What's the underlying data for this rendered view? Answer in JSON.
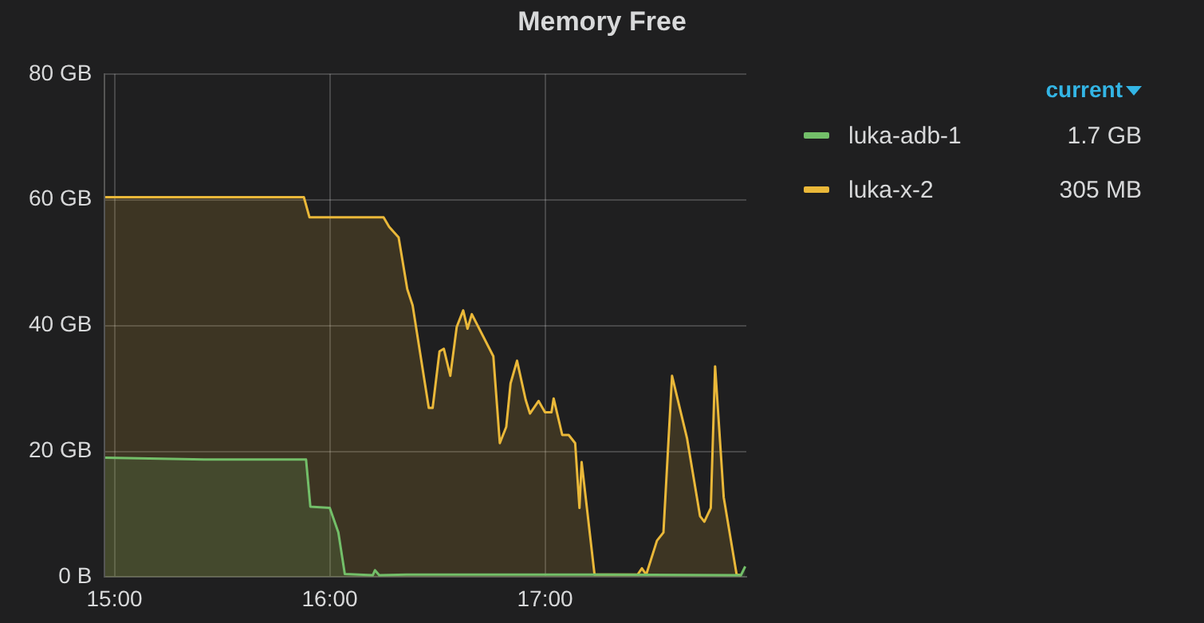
{
  "chart_data": {
    "type": "area",
    "title": "Memory Free",
    "legend_title": "current",
    "legend": "right",
    "grid": true,
    "xlim": [
      14.955,
      17.935
    ],
    "xticks": [
      {
        "value": 15,
        "label": "15:00"
      },
      {
        "value": 16,
        "label": "16:00"
      },
      {
        "value": 17,
        "label": "17:00"
      }
    ],
    "ylim": [
      0,
      80
    ],
    "yticks": [
      {
        "value": 0,
        "label": "0 B"
      },
      {
        "value": 20,
        "label": "20 GB"
      },
      {
        "value": 40,
        "label": "40 GB"
      },
      {
        "value": 60,
        "label": "60 GB"
      },
      {
        "value": 80,
        "label": "80 GB"
      }
    ],
    "annotations": [
      "1.7 GB",
      "305 MB"
    ],
    "series": [
      {
        "name": "luka-adb-1",
        "color": "#73bf69",
        "x": [
          14.957,
          15.43,
          15.89,
          15.91,
          16.0,
          16.04,
          16.07,
          16.2,
          16.21,
          16.23,
          16.37,
          17.23,
          17.91,
          17.93
        ],
        "values": [
          19,
          18.7,
          18.7,
          11.2,
          11,
          7.1,
          0.5,
          0.3,
          1.1,
          0.3,
          0.4,
          0.4,
          0.3,
          1.7
        ]
      },
      {
        "name": "luka-x-2",
        "color": "#eab839",
        "x": [
          14.957,
          15.88,
          15.906,
          16.25,
          16.276,
          16.32,
          16.36,
          16.385,
          16.46,
          16.478,
          16.51,
          16.53,
          16.56,
          16.59,
          16.62,
          16.64,
          16.66,
          16.76,
          16.79,
          16.82,
          16.84,
          16.87,
          16.91,
          16.93,
          16.97,
          17.0,
          17.03,
          17.04,
          17.08,
          17.11,
          17.14,
          17.16,
          17.17,
          17.23,
          17.43,
          17.45,
          17.47,
          17.52,
          17.55,
          17.59,
          17.66,
          17.72,
          17.74,
          17.77,
          17.79,
          17.83,
          17.89,
          17.91
        ],
        "values": [
          60.4,
          60.4,
          57.2,
          57.2,
          55.7,
          54,
          45.8,
          43.2,
          26.9,
          26.9,
          35.9,
          36.3,
          32,
          39.8,
          42.4,
          39.5,
          41.8,
          35.1,
          21.3,
          23.9,
          30.8,
          34.4,
          28.2,
          26,
          28,
          26.2,
          26.2,
          28.4,
          22.6,
          22.6,
          21.3,
          11,
          18.3,
          0.4,
          0.4,
          1.4,
          0.4,
          5.8,
          7.1,
          32,
          22,
          9.7,
          8.8,
          11,
          33.5,
          12.7,
          0.4,
          0.3
        ]
      }
    ]
  }
}
